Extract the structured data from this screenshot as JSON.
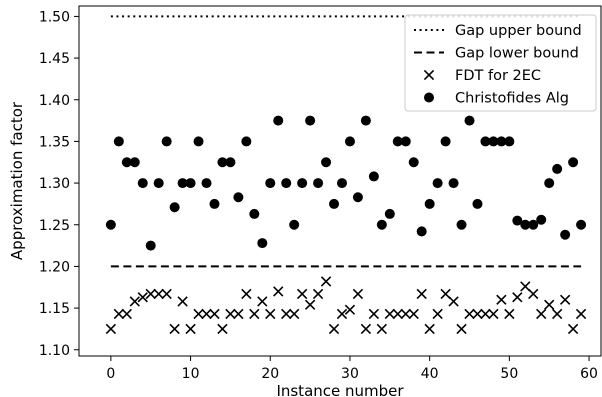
{
  "chart_data": {
    "type": "scatter",
    "xlabel": "Instance number",
    "ylabel": "Approximation factor",
    "xlim": [
      -4,
      61.5
    ],
    "ylim": [
      1.0925,
      1.5125
    ],
    "xticks": [
      0,
      10,
      20,
      30,
      40,
      50,
      60
    ],
    "yticks": [
      1.1,
      1.15,
      1.2,
      1.25,
      1.3,
      1.35,
      1.4,
      1.45,
      1.5
    ],
    "ytick_labels": [
      "1.10",
      "1.15",
      "1.20",
      "1.25",
      "1.30",
      "1.35",
      "1.40",
      "1.45",
      "1.50"
    ],
    "grid": false,
    "legend_position": "top-right",
    "series": [
      {
        "name": "Gap upper bound",
        "kind": "line",
        "style": "dotted",
        "x": [
          0,
          59
        ],
        "values": [
          1.5,
          1.5
        ]
      },
      {
        "name": "Gap lower bound",
        "kind": "line",
        "style": "dashed",
        "x": [
          0,
          59
        ],
        "values": [
          1.2,
          1.2
        ]
      },
      {
        "name": "FDT for 2EC",
        "kind": "scatter",
        "marker": "x",
        "x": [
          0,
          1,
          2,
          3,
          4,
          5,
          6,
          7,
          8,
          9,
          10,
          11,
          12,
          13,
          14,
          15,
          16,
          17,
          18,
          19,
          20,
          21,
          22,
          23,
          24,
          25,
          26,
          27,
          28,
          29,
          30,
          31,
          32,
          33,
          34,
          35,
          36,
          37,
          38,
          39,
          40,
          41,
          42,
          43,
          44,
          45,
          46,
          47,
          48,
          49,
          50,
          51,
          52,
          53,
          54,
          55,
          56,
          57,
          58,
          59
        ],
        "values": [
          1.125,
          1.143,
          1.143,
          1.158,
          1.163,
          1.167,
          1.167,
          1.167,
          1.125,
          1.158,
          1.125,
          1.143,
          1.143,
          1.143,
          1.125,
          1.143,
          1.143,
          1.167,
          1.143,
          1.158,
          1.143,
          1.17,
          1.143,
          1.143,
          1.167,
          1.154,
          1.167,
          1.182,
          1.125,
          1.143,
          1.148,
          1.167,
          1.125,
          1.143,
          1.125,
          1.143,
          1.143,
          1.143,
          1.143,
          1.167,
          1.125,
          1.143,
          1.167,
          1.158,
          1.125,
          1.143,
          1.143,
          1.143,
          1.143,
          1.16,
          1.143,
          1.163,
          1.176,
          1.167,
          1.143,
          1.154,
          1.143,
          1.16,
          1.125,
          1.143
        ]
      },
      {
        "name": "Christofides Alg",
        "kind": "scatter",
        "marker": "o",
        "x": [
          0,
          1,
          2,
          3,
          4,
          5,
          6,
          7,
          8,
          9,
          10,
          11,
          12,
          13,
          14,
          15,
          16,
          17,
          18,
          19,
          20,
          21,
          22,
          23,
          24,
          25,
          26,
          27,
          28,
          29,
          30,
          31,
          32,
          33,
          34,
          35,
          36,
          37,
          38,
          39,
          40,
          41,
          42,
          43,
          44,
          45,
          46,
          47,
          48,
          49,
          50,
          51,
          52,
          53,
          54,
          55,
          56,
          57,
          58,
          59
        ],
        "values": [
          1.25,
          1.35,
          1.325,
          1.325,
          1.3,
          1.225,
          1.3,
          1.35,
          1.271,
          1.3,
          1.3,
          1.35,
          1.3,
          1.275,
          1.325,
          1.325,
          1.283,
          1.35,
          1.263,
          1.228,
          1.3,
          1.375,
          1.3,
          1.25,
          1.3,
          1.375,
          1.3,
          1.325,
          1.275,
          1.3,
          1.35,
          1.283,
          1.375,
          1.308,
          1.25,
          1.263,
          1.35,
          1.35,
          1.325,
          1.242,
          1.275,
          1.3,
          1.35,
          1.3,
          1.25,
          1.375,
          1.275,
          1.35,
          1.35,
          1.35,
          1.35,
          1.255,
          1.25,
          1.25,
          1.256,
          1.3,
          1.317,
          1.238,
          1.325,
          1.25
        ]
      }
    ]
  }
}
